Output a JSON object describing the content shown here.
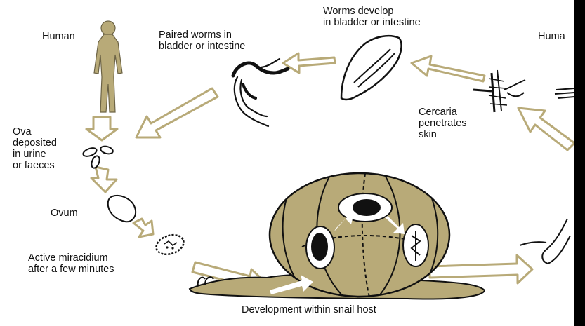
{
  "colors": {
    "khaki": "#b8aa78",
    "khaki_dark": "#a2956a",
    "ink": "#111111",
    "edge": "#000000"
  },
  "labels": {
    "human_left": "Human",
    "human_right": "Huma",
    "paired_worms": "Paired worms in\nbladder or intestine",
    "worms_develop": "Worms develop\nin bladder or intestine",
    "ova": "Ova\ndeposited\nin urine\nor faeces",
    "ovum": "Ovum",
    "miracidium": "Active miracidium\nafter a few minutes",
    "cercaria": "Cercaria\npenetrates\nskin",
    "snail": "Development within snail host"
  }
}
